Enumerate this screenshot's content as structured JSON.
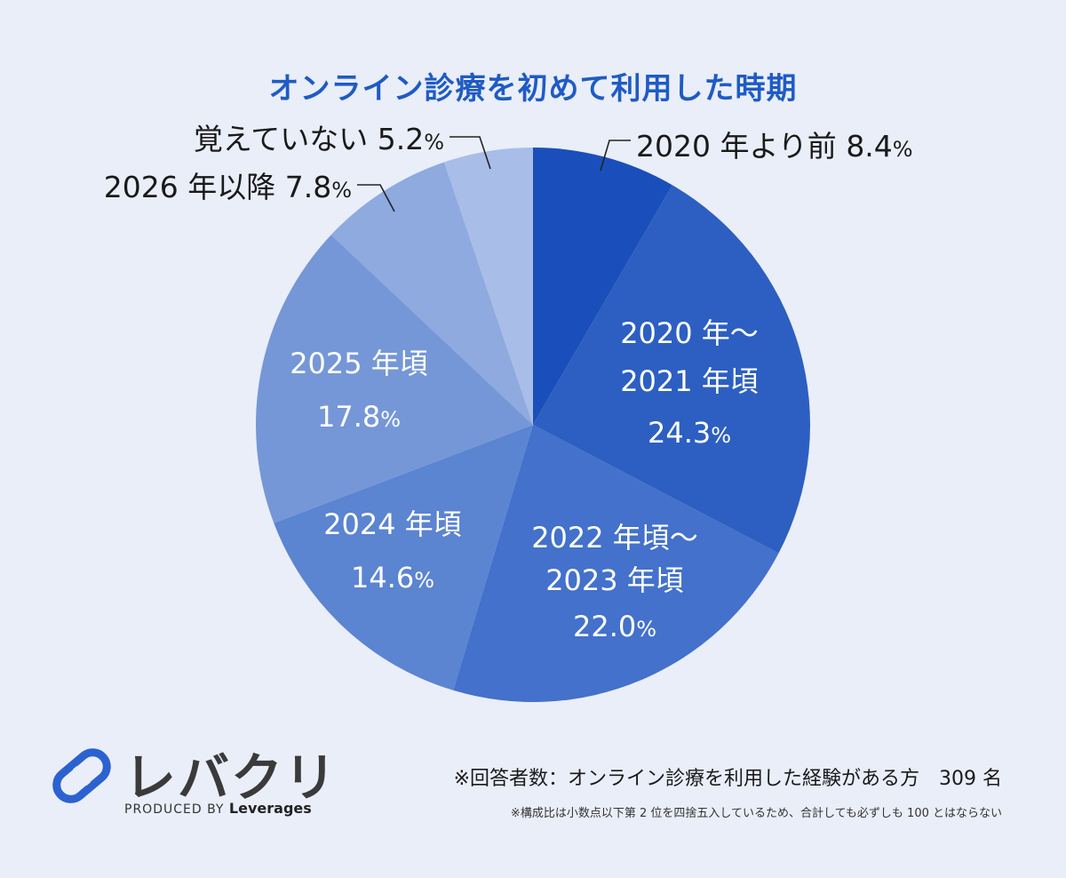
{
  "chart_data": {
    "type": "pie",
    "title": "オンライン診療を初めて利用した時期",
    "unit": "%",
    "slices": [
      {
        "name": "2020 年より前",
        "lines": [
          "2020 年より前"
        ],
        "value": 8.4,
        "color": "#1a4fbb",
        "label_style": "outside"
      },
      {
        "name": "2020 年～2021 年頃",
        "lines": [
          "2020 年～",
          "2021 年頃"
        ],
        "value": 24.3,
        "color": "#2c5fc1",
        "label_style": "inside"
      },
      {
        "name": "2022 年頃～2023 年頃",
        "lines": [
          "2022 年頃～",
          "2023 年頃"
        ],
        "value": 22.0,
        "color": "#4371cb",
        "label_style": "inside"
      },
      {
        "name": "2024 年頃",
        "lines": [
          "2024 年頃"
        ],
        "value": 14.6,
        "color": "#5b84d1",
        "label_style": "inside"
      },
      {
        "name": "2025 年頃",
        "lines": [
          "2025 年頃"
        ],
        "value": 17.8,
        "color": "#7597d7",
        "label_style": "inside"
      },
      {
        "name": "2026 年以降",
        "lines": [
          "2026 年以降"
        ],
        "value": 7.8,
        "color": "#8eaadf",
        "label_style": "outside"
      },
      {
        "name": "覚えていない",
        "lines": [
          "覚えていない"
        ],
        "value": 5.2,
        "color": "#a8bde7",
        "label_style": "outside"
      }
    ]
  },
  "brand": {
    "name": "レバクリ",
    "produced_by": "PRODUCED BY",
    "company": "Leverages",
    "accent": "#2b62d0"
  },
  "notes": {
    "respondents": "※回答者数：オンライン診療を利用した経験がある方　309 名",
    "rounding": "※構成比は小数点以下第 2 位を四捨五入しているため、合計しても必ずしも 100 とはならない"
  }
}
